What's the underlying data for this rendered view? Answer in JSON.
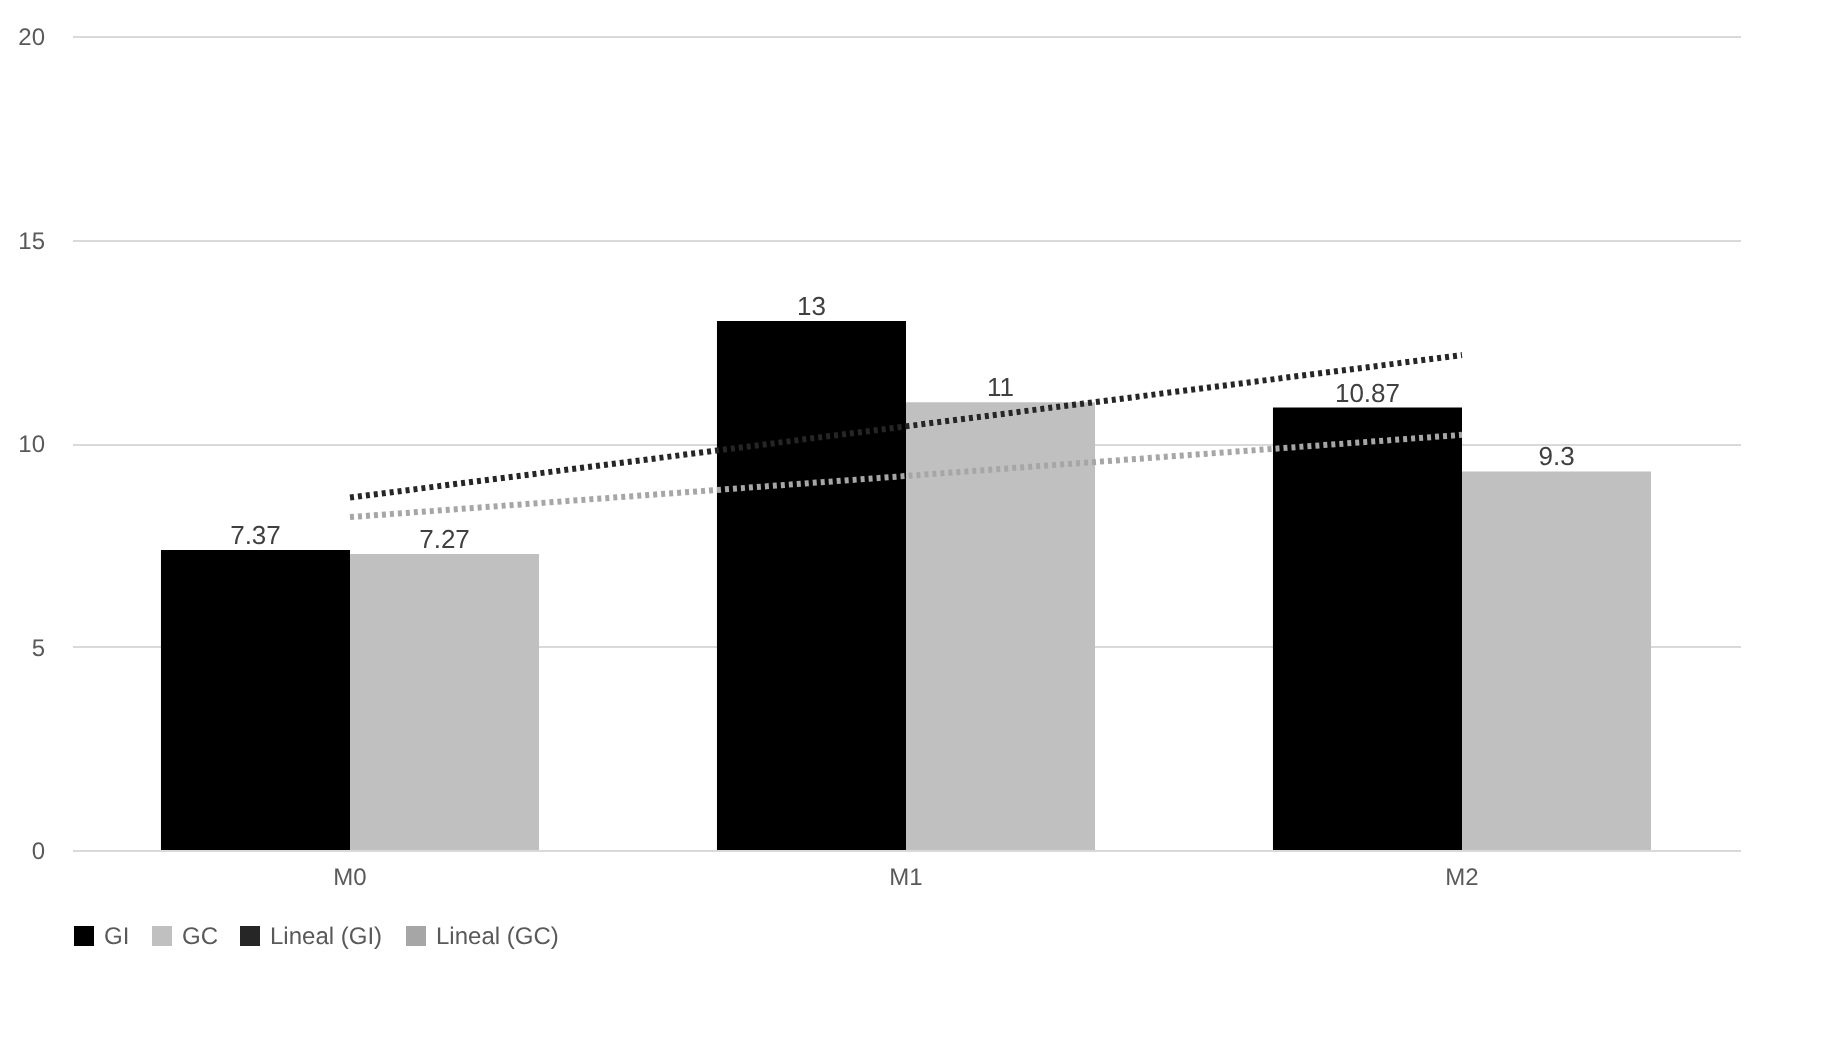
{
  "chart_data": {
    "type": "bar",
    "categories": [
      "M0",
      "M1",
      "M2"
    ],
    "series": [
      {
        "name": "GI",
        "color": "#000000",
        "values": [
          7.37,
          13,
          10.87
        ],
        "value_labels": [
          "7.37",
          "13",
          "10.87"
        ]
      },
      {
        "name": "GC",
        "color": "#c0c0c0",
        "values": [
          7.27,
          11,
          9.3
        ],
        "value_labels": [
          "7.27",
          "11",
          "9.3"
        ]
      },
      {
        "type": "line",
        "name": "Lineal (GI)",
        "color": "#262626",
        "line_style": "dotted",
        "values": [
          8.66,
          10.41,
          12.16
        ]
      },
      {
        "type": "line",
        "name": "Lineal (GC)",
        "color": "#a6a6a6",
        "line_style": "dotted",
        "values": [
          8.18,
          9.19,
          10.2
        ]
      }
    ],
    "ylim": [
      0,
      20
    ],
    "yticks": [
      0,
      5,
      10,
      15,
      20
    ],
    "grid": "y",
    "legend": "bottom"
  }
}
